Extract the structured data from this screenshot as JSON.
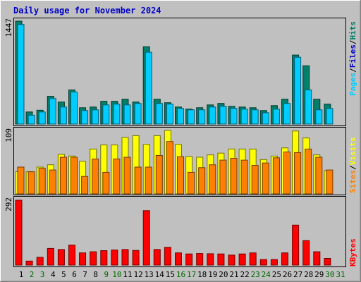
{
  "chart_data": {
    "type": "bar",
    "title": "Daily usage for November 2024",
    "categories": [
      "1",
      "2",
      "3",
      "4",
      "5",
      "6",
      "7",
      "8",
      "9",
      "10",
      "11",
      "12",
      "13",
      "14",
      "15",
      "16",
      "17",
      "18",
      "19",
      "20",
      "21",
      "22",
      "23",
      "24",
      "25",
      "26",
      "27",
      "28",
      "29",
      "30",
      "31"
    ],
    "weekend_days": [
      "2",
      "3",
      "9",
      "10",
      "16",
      "17",
      "23",
      "24",
      "30",
      "31"
    ],
    "weekend_color": "#006600",
    "weekday_color": "#000000",
    "panels": [
      {
        "id": "hits-files",
        "ymax": 1447,
        "ymax_label": "1447",
        "legend": [
          {
            "text": "Pages",
            "color": "#00ccff"
          },
          {
            "text": "/",
            "color": "#000000"
          },
          {
            "text": "Files",
            "color": "#0000cc"
          },
          {
            "text": "/",
            "color": "#000000"
          },
          {
            "text": "Hits",
            "color": "#00806a"
          }
        ],
        "series": [
          {
            "name": "Hits",
            "color": "#00806a",
            "values": [
              1447,
              170,
              195,
              390,
              310,
              480,
              230,
              240,
              320,
              320,
              350,
              310,
              1087,
              350,
              300,
              240,
              210,
              230,
              270,
              290,
              250,
              240,
              230,
              190,
              260,
              350,
              970,
              820,
              350,
              280,
              null
            ]
          },
          {
            "name": "Files",
            "color": "#00ccff",
            "values": [
              1400,
              125,
              170,
              360,
              240,
              450,
              190,
              200,
              270,
              280,
              270,
              290,
              1010,
              290,
              280,
              220,
              200,
              200,
              240,
              250,
              220,
              210,
              200,
              160,
              210,
              290,
              940,
              480,
              200,
              220,
              null
            ]
          }
        ]
      },
      {
        "id": "visits-sites",
        "ymax": 109,
        "ymax_label": "109",
        "legend": [
          {
            "text": "Sites",
            "color": "#ff8000"
          },
          {
            "text": "/",
            "color": "#000000"
          },
          {
            "text": "Visits",
            "color": "#ffff00"
          }
        ],
        "series": [
          {
            "name": "Visits",
            "color": "#ffff00",
            "values": [
              38,
              38,
              46,
              50,
              68,
              65,
              56,
              77,
              84,
              84,
              97,
              100,
              85,
              100,
              109,
              85,
              64,
              63,
              67,
              70,
              77,
              77,
              77,
              59,
              65,
              79,
              108,
              96,
              67,
              40,
              null
            ]
          },
          {
            "name": "Sites",
            "color": "#ff8000",
            "values": [
              46,
              38,
              44,
              41,
              63,
              63,
              30,
              60,
              37,
              60,
              63,
              46,
              46,
              66,
              90,
              64,
              37,
              45,
              50,
              58,
              61,
              58,
              49,
              53,
              62,
              72,
              71,
              77,
              63,
              41,
              null
            ]
          }
        ]
      },
      {
        "id": "kbytes",
        "ymax": 292,
        "ymax_label": "292",
        "legend": [
          {
            "text": "KBytes",
            "color": "#ff0000"
          }
        ],
        "series": [
          {
            "name": "KBytes",
            "color": "#ff0000",
            "values": [
              292,
              18,
              35,
              75,
              70,
              90,
              55,
              60,
              65,
              68,
              70,
              66,
              245,
              70,
              80,
              55,
              50,
              52,
              51,
              50,
              45,
              50,
              55,
              25,
              25,
              55,
              180,
              110,
              60,
              30,
              null
            ]
          }
        ]
      }
    ]
  }
}
